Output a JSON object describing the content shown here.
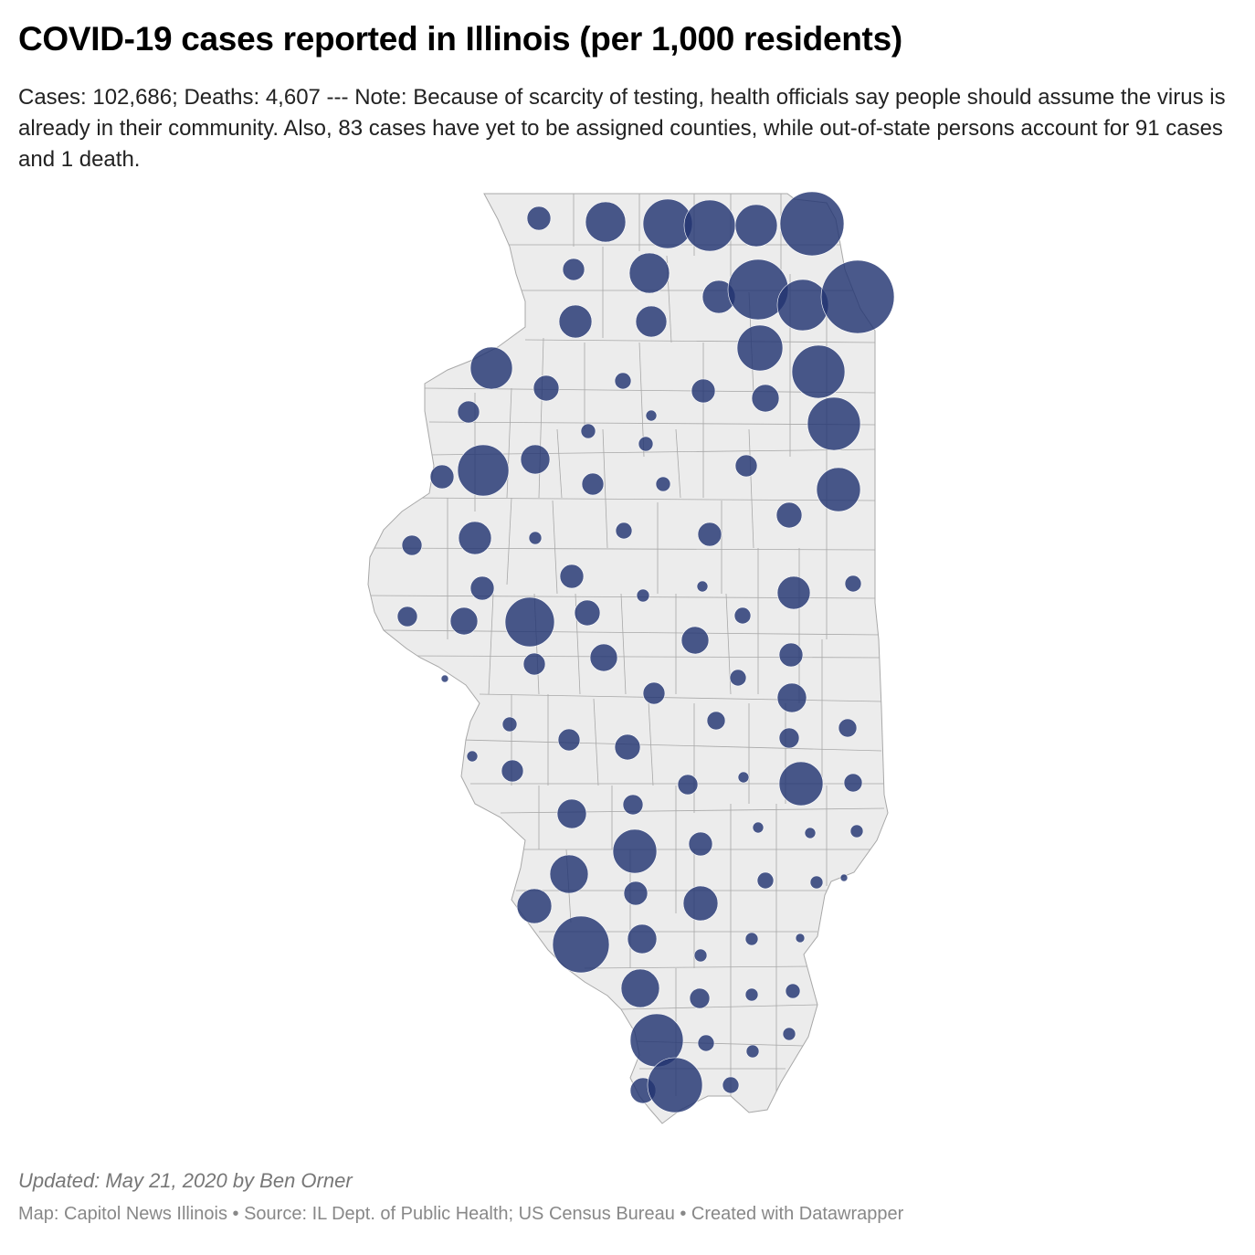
{
  "title": "COVID-19 cases reported in Illinois (per 1,000 residents)",
  "description": "Cases: 102,686; Deaths: 4,607 --- Note: Because of scarcity of testing, health officials say people should assume the virus is already in their community. Also, 83 cases have yet to be assigned counties, while out-of-state persons account for 91 cases and 1 death.",
  "updated": "Updated: May 21, 2020 by Ben Orner",
  "source": "Map: Capitol News Illinois • Source: IL Dept. of Public Health; US Census Bureau • Created with Datawrapper",
  "colors": {
    "land": "#ececec",
    "county_border": "#a8a8a8",
    "bubble_fill": "#223472",
    "bubble_stroke": "#ffffff"
  },
  "map": {
    "region": "Illinois",
    "symbol": "proportional circles by county"
  }
}
